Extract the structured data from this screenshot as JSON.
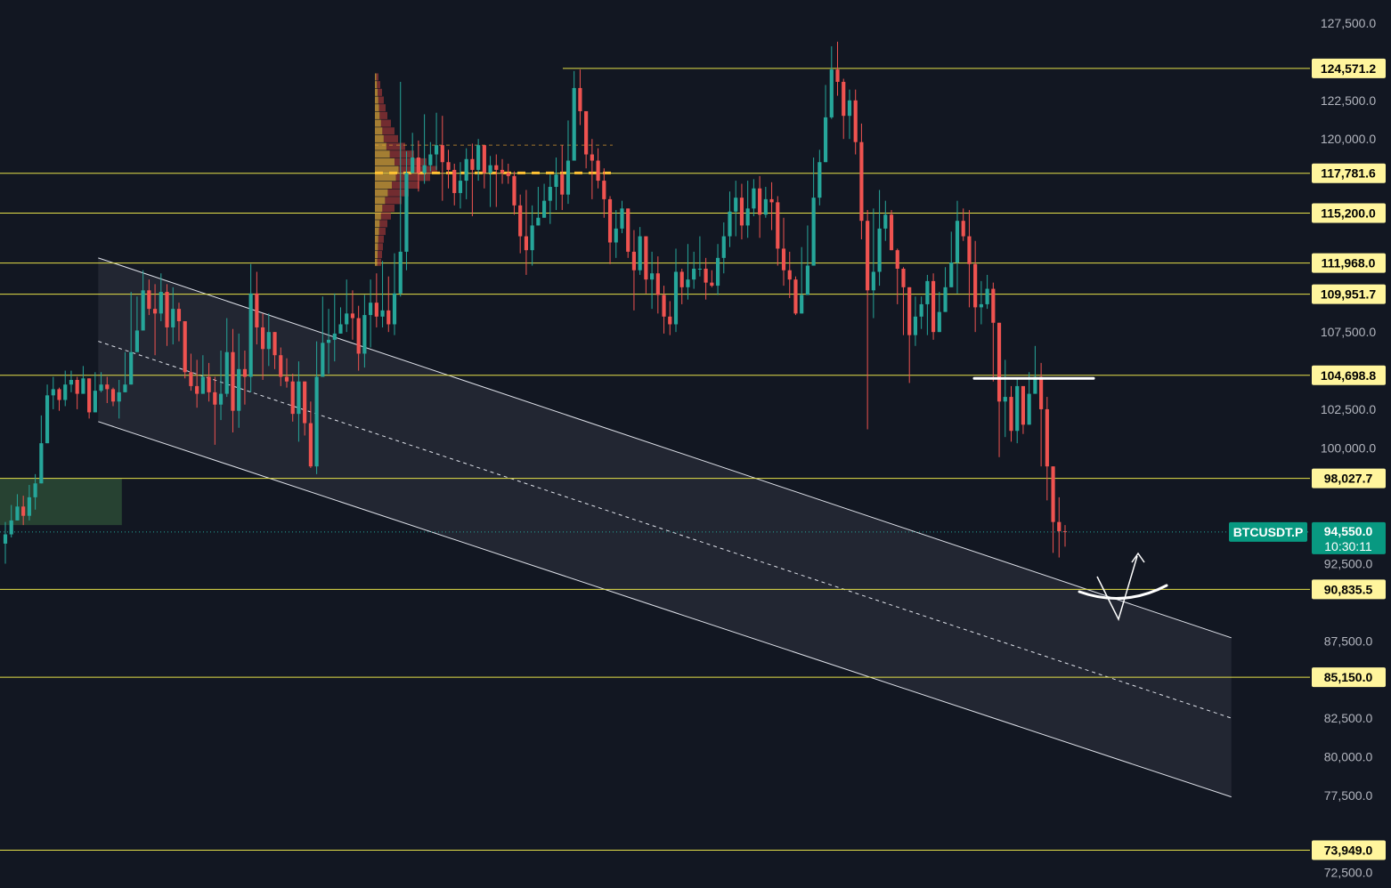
{
  "symbol": "BTCUSDT.P",
  "last_price": "94,550.0",
  "countdown": "10:30:11",
  "colors": {
    "background": "#121722",
    "up": "#26a69a",
    "down": "#ef5350",
    "level_line": "#e6e14a",
    "level_tag": "#fff59d",
    "price_tag": "#089981",
    "channel_fill": "#2a2e39",
    "demand_zone": "#2c4a35"
  },
  "chart_data": {
    "type": "candlestick",
    "y_axis_ticks": [
      "127,500.0",
      "122,500.0",
      "120,000.0",
      "107,500.0",
      "102,500.0",
      "100,000.0",
      "92,500.0",
      "87,500.0",
      "82,500.0",
      "80,000.0",
      "77,500.0",
      "72,500.0"
    ],
    "levels": [
      {
        "value": 124571.2,
        "label": "124,571.2"
      },
      {
        "value": 117781.6,
        "label": "117,781.6"
      },
      {
        "value": 115200.0,
        "label": "115,200.0"
      },
      {
        "value": 111968.0,
        "label": "111,968.0"
      },
      {
        "value": 109951.7,
        "label": "109,951.7"
      },
      {
        "value": 104698.8,
        "label": "104,698.8"
      },
      {
        "value": 98027.7,
        "label": "98,027.7"
      },
      {
        "value": 90835.5,
        "label": "90,835.5"
      },
      {
        "value": 85150.0,
        "label": "85,150.0"
      },
      {
        "value": 73949.0,
        "label": "73,949.0"
      }
    ],
    "current_price": 94550.0,
    "ylim": [
      71500,
      129000
    ],
    "channel": {
      "upper": [
        {
          "bar": 0.075,
          "price": 112300
        },
        {
          "bar": 0.94,
          "price": 87700
        }
      ],
      "lower": [
        {
          "bar": 0.075,
          "price": 101700
        },
        {
          "bar": 0.94,
          "price": 77400
        }
      ],
      "mid": [
        {
          "bar": 0.075,
          "price": 106900
        },
        {
          "bar": 0.94,
          "price": 82500
        }
      ]
    },
    "demand_zone": {
      "start": 0.0,
      "end": 0.093,
      "top": 98000,
      "bottom": 95000
    },
    "closes": [
      94400,
      95300,
      96200,
      95600,
      96800,
      97700,
      100300,
      103400,
      103800,
      103100,
      104100,
      104400,
      103500,
      104500,
      102300,
      103700,
      104100,
      103800,
      103000,
      103600,
      104100,
      106200,
      107600,
      110200,
      109000,
      108700,
      110100,
      107800,
      109000,
      108200,
      104900,
      104000,
      103500,
      104600,
      103600,
      102800,
      103500,
      106200,
      102400,
      105100,
      104600,
      110000,
      107800,
      106400,
      107500,
      106000,
      104600,
      104300,
      102200,
      104300,
      101600,
      98800,
      104600,
      106800,
      107000,
      107400,
      108000,
      108700,
      108400,
      106100,
      108600,
      109400,
      108500,
      108900,
      108000,
      110000,
      112700,
      117800,
      118800,
      117800,
      118300,
      119000,
      119600,
      118500,
      118000,
      116500,
      117300,
      118700,
      118000,
      119600,
      117800,
      118300,
      118000,
      117800,
      117600,
      115700,
      113700,
      112800,
      114400,
      114900,
      116000,
      116900,
      117700,
      116400,
      118600,
      123300,
      121800,
      119000,
      118600,
      117300,
      116100,
      113300,
      114200,
      115500,
      112700,
      111500,
      113700,
      110900,
      111300,
      109900,
      108500,
      108000,
      111400,
      110400,
      110900,
      111600,
      111600,
      110700,
      110500,
      112300,
      113700,
      115300,
      116200,
      114400,
      115500,
      116800,
      115100,
      116100,
      115900,
      112900,
      111500,
      110900,
      108700,
      109900,
      111800,
      116200,
      118500,
      121400,
      124500,
      123700,
      121500,
      122500,
      119800,
      114700,
      110200,
      111400,
      114200,
      115100,
      112800,
      111600,
      110400,
      107300,
      108500,
      109300,
      110800,
      107500,
      108800,
      110400,
      112000,
      114700,
      113700,
      111900,
      109100,
      109300,
      110300,
      108100,
      103000,
      103300,
      101100,
      104000,
      101500,
      103500,
      104600,
      102500,
      98800,
      95200,
      94600,
      94550
    ],
    "highs": [
      95200,
      96300,
      97000,
      96900,
      97600,
      98300,
      102100,
      104100,
      104600,
      103900,
      105000,
      105000,
      104600,
      105300,
      104400,
      104900,
      104900,
      104600,
      103900,
      104400,
      106200,
      110100,
      109800,
      111500,
      110900,
      110600,
      111300,
      110600,
      110400,
      109400,
      106400,
      106100,
      105700,
      106000,
      105500,
      104600,
      106300,
      108400,
      107700,
      107400,
      106300,
      111900,
      111400,
      108700,
      108700,
      107400,
      106500,
      105800,
      104800,
      105600,
      103900,
      103000,
      106900,
      109800,
      109000,
      110000,
      109100,
      110900,
      110200,
      109200,
      109900,
      110900,
      111300,
      112100,
      111100,
      112600,
      123700,
      119200,
      120400,
      119900,
      121600,
      119800,
      121700,
      121500,
      119300,
      118400,
      118500,
      119400,
      119700,
      120000,
      119400,
      118900,
      119000,
      118700,
      118400,
      117900,
      116400,
      116700,
      115700,
      116900,
      117100,
      117700,
      118800,
      119600,
      121200,
      124400,
      124500,
      121500,
      120000,
      119400,
      118100,
      116300,
      115400,
      116000,
      115400,
      114100,
      114300,
      113000,
      112700,
      112400,
      110500,
      109500,
      112900,
      111600,
      113200,
      112700,
      113700,
      112300,
      111500,
      113200,
      114600,
      116600,
      117300,
      117100,
      117300,
      117400,
      117600,
      116900,
      117200,
      116300,
      114900,
      112700,
      111100,
      113000,
      114400,
      118800,
      119300,
      123500,
      126000,
      126300,
      123900,
      123200,
      123200,
      121000,
      115400,
      115500,
      116700,
      116000,
      115400,
      112900,
      111700,
      108900,
      109800,
      109800,
      111200,
      111300,
      110100,
      111700,
      114000,
      116000,
      115500,
      115400,
      113400,
      110800,
      111200,
      110700,
      106500,
      105700,
      104000,
      104500,
      103800,
      104900,
      106600,
      105500,
      103300,
      97600,
      96800,
      95000
    ],
    "lows": [
      92500,
      94200,
      95500,
      95000,
      95300,
      96000,
      98600,
      101600,
      102500,
      102400,
      102700,
      103600,
      102500,
      104000,
      101900,
      102700,
      103600,
      102900,
      102700,
      101900,
      103800,
      105300,
      107000,
      107700,
      108600,
      106000,
      108200,
      106600,
      106700,
      106900,
      104500,
      103700,
      102600,
      103700,
      103000,
      100200,
      101800,
      103300,
      101000,
      101300,
      102800,
      103600,
      106700,
      104400,
      105300,
      105100,
      104000,
      103900,
      101700,
      100400,
      100800,
      98700,
      98300,
      104600,
      104800,
      105600,
      107600,
      107500,
      107000,
      105000,
      105200,
      106500,
      107800,
      107800,
      107500,
      107300,
      109800,
      111500,
      118300,
      116600,
      117100,
      117900,
      118000,
      116000,
      116800,
      115700,
      115500,
      116100,
      115000,
      117300,
      116800,
      115600,
      115600,
      117100,
      117100,
      115100,
      112600,
      111200,
      111800,
      114700,
      115400,
      114500,
      115400,
      115400,
      115800,
      119900,
      120900,
      118100,
      116100,
      116800,
      114900,
      111900,
      112300,
      113900,
      112300,
      108900,
      111200,
      110000,
      109000,
      108700,
      107400,
      107300,
      107500,
      109300,
      109600,
      110300,
      111100,
      109600,
      110400,
      109900,
      111300,
      113000,
      113700,
      113500,
      113600,
      115000,
      113600,
      114900,
      114100,
      111800,
      110500,
      109700,
      108600,
      109100,
      110300,
      112600,
      115700,
      118700,
      121300,
      122800,
      120000,
      120000,
      119000,
      113500,
      101200,
      108400,
      110500,
      113400,
      112800,
      109300,
      107300,
      104200,
      106600,
      107700,
      107300,
      107000,
      107900,
      108800,
      110400,
      110000,
      113400,
      109100,
      107500,
      108000,
      109000,
      104300,
      99400,
      100700,
      100400,
      100300,
      100900,
      101900,
      103500,
      98800,
      96600,
      93200,
      92900,
      93600
    ]
  }
}
